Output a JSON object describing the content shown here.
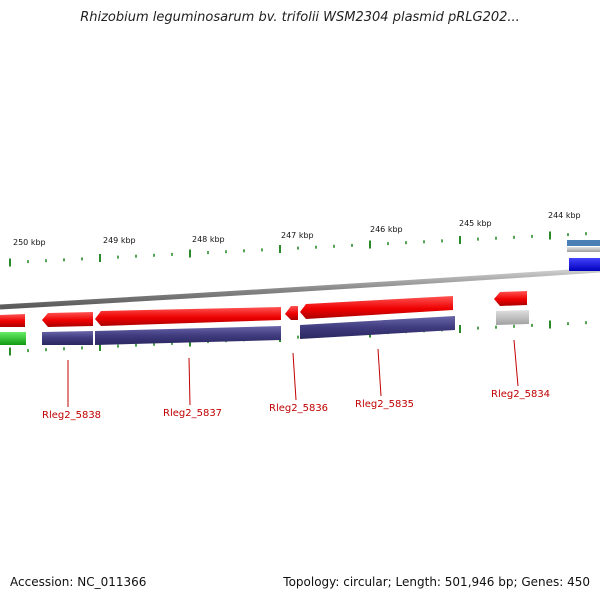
{
  "title": "Rhizobium leguminosarum bv. trifolii WSM2304 plasmid pRLG202...",
  "footer": {
    "accession": "Accession: NC_011366",
    "topology": "Topology: circular; Length: 501,946 bp; Genes: 450"
  },
  "scale": [
    {
      "label": "250 kbp"
    },
    {
      "label": "249 kbp"
    },
    {
      "label": "248 kbp"
    },
    {
      "label": "247 kbp"
    },
    {
      "label": "246 kbp"
    },
    {
      "label": "245 kbp"
    },
    {
      "label": "244 kbp"
    }
  ],
  "genes": [
    {
      "label": "Rleg2_5838"
    },
    {
      "label": "Rleg2_5837"
    },
    {
      "label": "Rleg2_5836"
    },
    {
      "label": "Rleg2_5835"
    },
    {
      "label": "Rleg2_5834"
    }
  ],
  "colors": {
    "cds": "#ee0000",
    "cds_dark": "#990000",
    "feature_purple": "#3f3b7e",
    "feature_gray": "#b8b8b8",
    "feature_green": "#22bb22",
    "feature_blue": "#1010ee",
    "feature_steel": "#4a7fb5",
    "backbone": "#8a8a8a",
    "tick": "#2a8a2a",
    "label_red": "#c00000"
  }
}
